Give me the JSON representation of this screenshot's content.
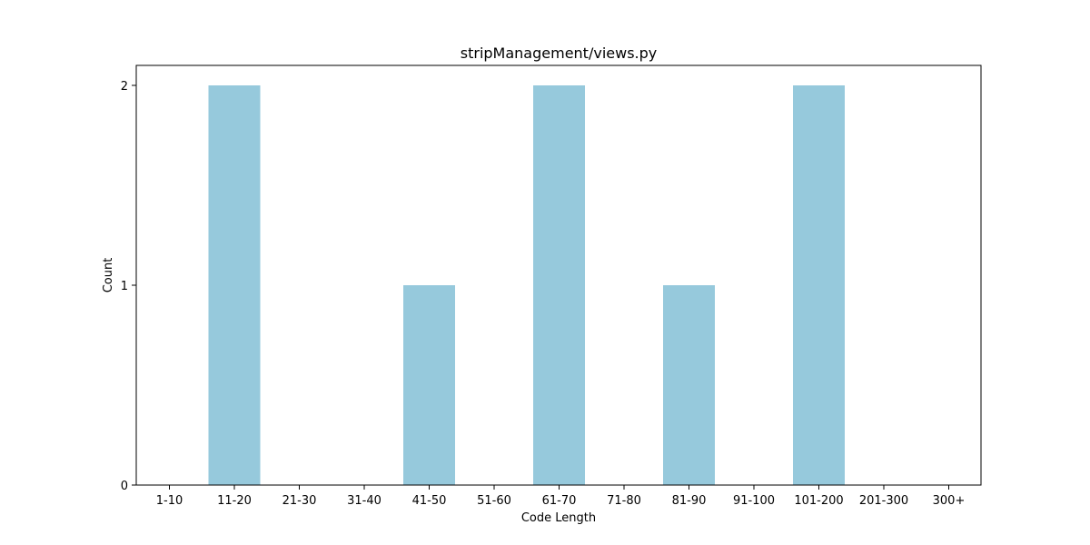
{
  "chart_data": {
    "type": "bar",
    "title": "stripManagement/views.py",
    "xlabel": "Code Length",
    "ylabel": "Count",
    "categories": [
      "1-10",
      "11-20",
      "21-30",
      "31-40",
      "41-50",
      "51-60",
      "61-70",
      "71-80",
      "81-90",
      "91-100",
      "101-200",
      "201-300",
      "300+"
    ],
    "values": [
      0,
      2,
      0,
      0,
      1,
      0,
      2,
      0,
      1,
      0,
      2,
      0,
      0
    ],
    "ylim": [
      0,
      2.1
    ],
    "yticks": [
      0,
      1,
      2
    ],
    "ytick_labels": [
      "0",
      "1",
      "2"
    ],
    "bar_color": "#96c9dc",
    "grid": false,
    "legend": "none"
  }
}
